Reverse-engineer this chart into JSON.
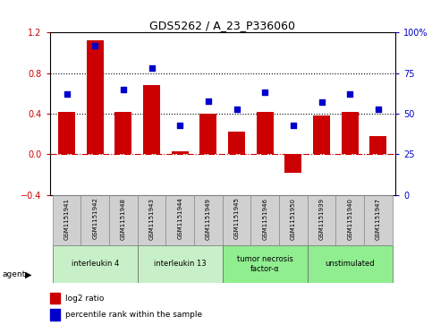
{
  "title": "GDS5262 / A_23_P336060",
  "samples": [
    "GSM1151941",
    "GSM1151942",
    "GSM1151948",
    "GSM1151943",
    "GSM1151944",
    "GSM1151949",
    "GSM1151945",
    "GSM1151946",
    "GSM1151950",
    "GSM1151939",
    "GSM1151940",
    "GSM1151947"
  ],
  "log2_ratio": [
    0.42,
    1.12,
    0.42,
    0.68,
    0.03,
    0.4,
    0.22,
    0.42,
    -0.18,
    0.38,
    0.42,
    0.18
  ],
  "percentile": [
    62,
    92,
    65,
    78,
    43,
    58,
    53,
    63,
    43,
    57,
    62,
    53
  ],
  "agents": [
    {
      "label": "interleukin 4",
      "start": 0,
      "end": 3,
      "color": "#c8f0c8"
    },
    {
      "label": "interleukin 13",
      "start": 3,
      "end": 6,
      "color": "#c8f0c8"
    },
    {
      "label": "tumor necrosis\nfactor-α",
      "start": 6,
      "end": 9,
      "color": "#90ee90"
    },
    {
      "label": "unstimulated",
      "start": 9,
      "end": 12,
      "color": "#90ee90"
    }
  ],
  "bar_color": "#cc0000",
  "dot_color": "#0000cc",
  "ylim": [
    -0.4,
    1.2
  ],
  "yticks": [
    -0.4,
    0.0,
    0.4,
    0.8,
    1.2
  ],
  "y2ticks": [
    0,
    25,
    50,
    75,
    100
  ],
  "hline_y": [
    0.0,
    0.4,
    0.8
  ],
  "bg_color": "#ffffff",
  "zero_line_color": "#cc0000"
}
